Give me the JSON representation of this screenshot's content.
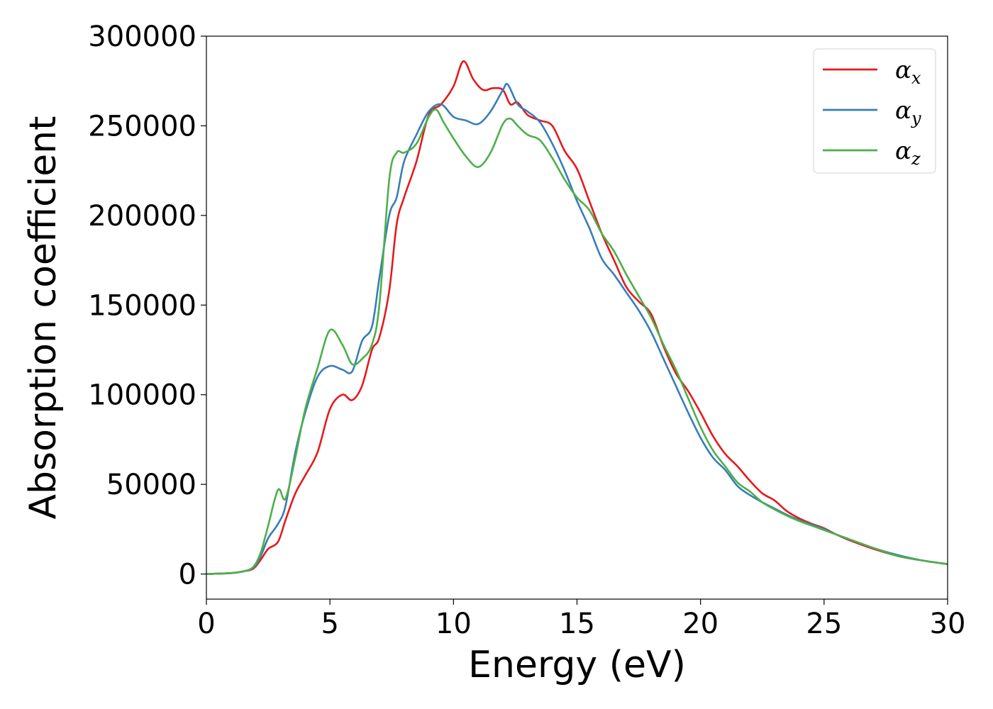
{
  "chart_data": {
    "type": "line",
    "title": "",
    "xlabel": "Energy (eV)",
    "ylabel": "Absorption coefficient",
    "xlim": [
      0,
      30
    ],
    "ylim": [
      -14000,
      300000
    ],
    "xticks": [
      0,
      5,
      10,
      15,
      20,
      25,
      30
    ],
    "yticks": [
      0,
      50000,
      100000,
      150000,
      200000,
      250000,
      300000
    ],
    "grid": false,
    "legend_position": "top-right",
    "series": [
      {
        "name": "α",
        "subscript": "x",
        "color": "#e41a1c",
        "x": [
          0,
          1,
          1.5,
          1.9,
          2.2,
          2.5,
          2.9,
          3.2,
          3.6,
          4.0,
          4.5,
          5.0,
          5.5,
          5.9,
          6.3,
          6.7,
          7.0,
          7.4,
          7.7,
          8.0,
          8.5,
          9.0,
          9.5,
          10.0,
          10.4,
          10.8,
          11.2,
          11.6,
          12.0,
          12.3,
          12.6,
          13.0,
          13.5,
          14.0,
          14.5,
          15.0,
          15.5,
          16.0,
          16.5,
          17.0,
          17.5,
          18.0,
          18.5,
          19.0,
          19.5,
          20.0,
          20.5,
          21.0,
          21.5,
          22.0,
          22.5,
          23.0,
          23.5,
          24.0,
          24.5,
          25.0,
          25.5,
          26.0,
          27.0,
          28.0,
          29.0,
          30.0
        ],
        "y": [
          0,
          500,
          1500,
          3000,
          8000,
          14000,
          18000,
          30000,
          45000,
          55000,
          68000,
          92000,
          100000,
          97000,
          105000,
          125000,
          132000,
          158000,
          195000,
          210000,
          230000,
          256000,
          262000,
          272000,
          286000,
          276000,
          270000,
          271000,
          270000,
          262000,
          263000,
          256000,
          253000,
          250000,
          236000,
          226000,
          208000,
          190000,
          175000,
          160000,
          152000,
          145000,
          127000,
          112000,
          102000,
          90000,
          77000,
          67000,
          60000,
          52000,
          45000,
          41000,
          35000,
          31000,
          28000,
          25500,
          22000,
          19000,
          14000,
          10000,
          7500,
          5500
        ]
      },
      {
        "name": "α",
        "subscript": "y",
        "color": "#377eb8",
        "x": [
          0,
          1,
          1.5,
          1.9,
          2.2,
          2.5,
          2.9,
          3.2,
          3.6,
          4.0,
          4.5,
          5.0,
          5.5,
          5.9,
          6.3,
          6.7,
          7.0,
          7.4,
          7.7,
          8.0,
          8.5,
          9.0,
          9.5,
          10.0,
          10.5,
          11.0,
          11.5,
          12.0,
          12.2,
          12.6,
          13.0,
          13.5,
          14.0,
          14.5,
          15.0,
          15.5,
          16.0,
          16.5,
          17.0,
          17.5,
          18.0,
          18.5,
          19.0,
          19.5,
          20.0,
          20.5,
          21.0,
          21.5,
          22.0,
          22.5,
          23.0,
          23.5,
          24.0,
          24.5,
          25.0,
          25.5,
          26.0,
          27.0,
          28.0,
          29.0,
          30.0
        ],
        "y": [
          0,
          500,
          1500,
          3500,
          10000,
          20000,
          28000,
          38000,
          68000,
          90000,
          110000,
          116000,
          114000,
          113000,
          130000,
          138000,
          165000,
          200000,
          210000,
          230000,
          245000,
          258000,
          262000,
          255000,
          253000,
          251000,
          258000,
          270000,
          273000,
          262000,
          258000,
          252000,
          240000,
          225000,
          208000,
          193000,
          176000,
          167000,
          157000,
          147000,
          135000,
          120000,
          105000,
          90000,
          76000,
          65000,
          58000,
          49000,
          44000,
          40000,
          36500,
          33000,
          30000,
          27500,
          25000,
          22000,
          19500,
          14500,
          10500,
          7500,
          5500
        ]
      },
      {
        "name": "α",
        "subscript": "z",
        "color": "#4daf4a",
        "x": [
          0,
          1,
          1.5,
          1.9,
          2.2,
          2.5,
          2.9,
          3.2,
          3.6,
          4.0,
          4.5,
          5.0,
          5.5,
          5.9,
          6.3,
          6.7,
          7.0,
          7.4,
          7.7,
          8.0,
          8.5,
          9.0,
          9.3,
          9.6,
          10.0,
          10.5,
          11.0,
          11.5,
          12.0,
          12.3,
          12.6,
          13.0,
          13.5,
          14.0,
          14.5,
          15.0,
          15.5,
          16.0,
          16.5,
          17.0,
          17.5,
          18.0,
          18.5,
          19.0,
          19.5,
          20.0,
          20.5,
          21.0,
          21.5,
          22.0,
          22.5,
          23.0,
          23.5,
          24.0,
          24.5,
          25.0,
          25.5,
          26.0,
          27.0,
          28.0,
          29.0,
          30.0
        ],
        "y": [
          0,
          500,
          1500,
          4000,
          12000,
          27000,
          47000,
          42000,
          65000,
          92000,
          115000,
          136000,
          128000,
          117000,
          120000,
          128000,
          150000,
          220000,
          235000,
          235000,
          240000,
          255000,
          259000,
          252000,
          243000,
          233000,
          227000,
          235000,
          251000,
          254000,
          250000,
          245000,
          242000,
          232000,
          220000,
          210000,
          203000,
          190000,
          180000,
          167000,
          155000,
          143000,
          128000,
          114000,
          98000,
          82000,
          69000,
          60000,
          51000,
          46000,
          40000,
          36000,
          32500,
          29500,
          27000,
          24500,
          22000,
          19500,
          14500,
          10000,
          7500,
          5500
        ]
      }
    ]
  }
}
